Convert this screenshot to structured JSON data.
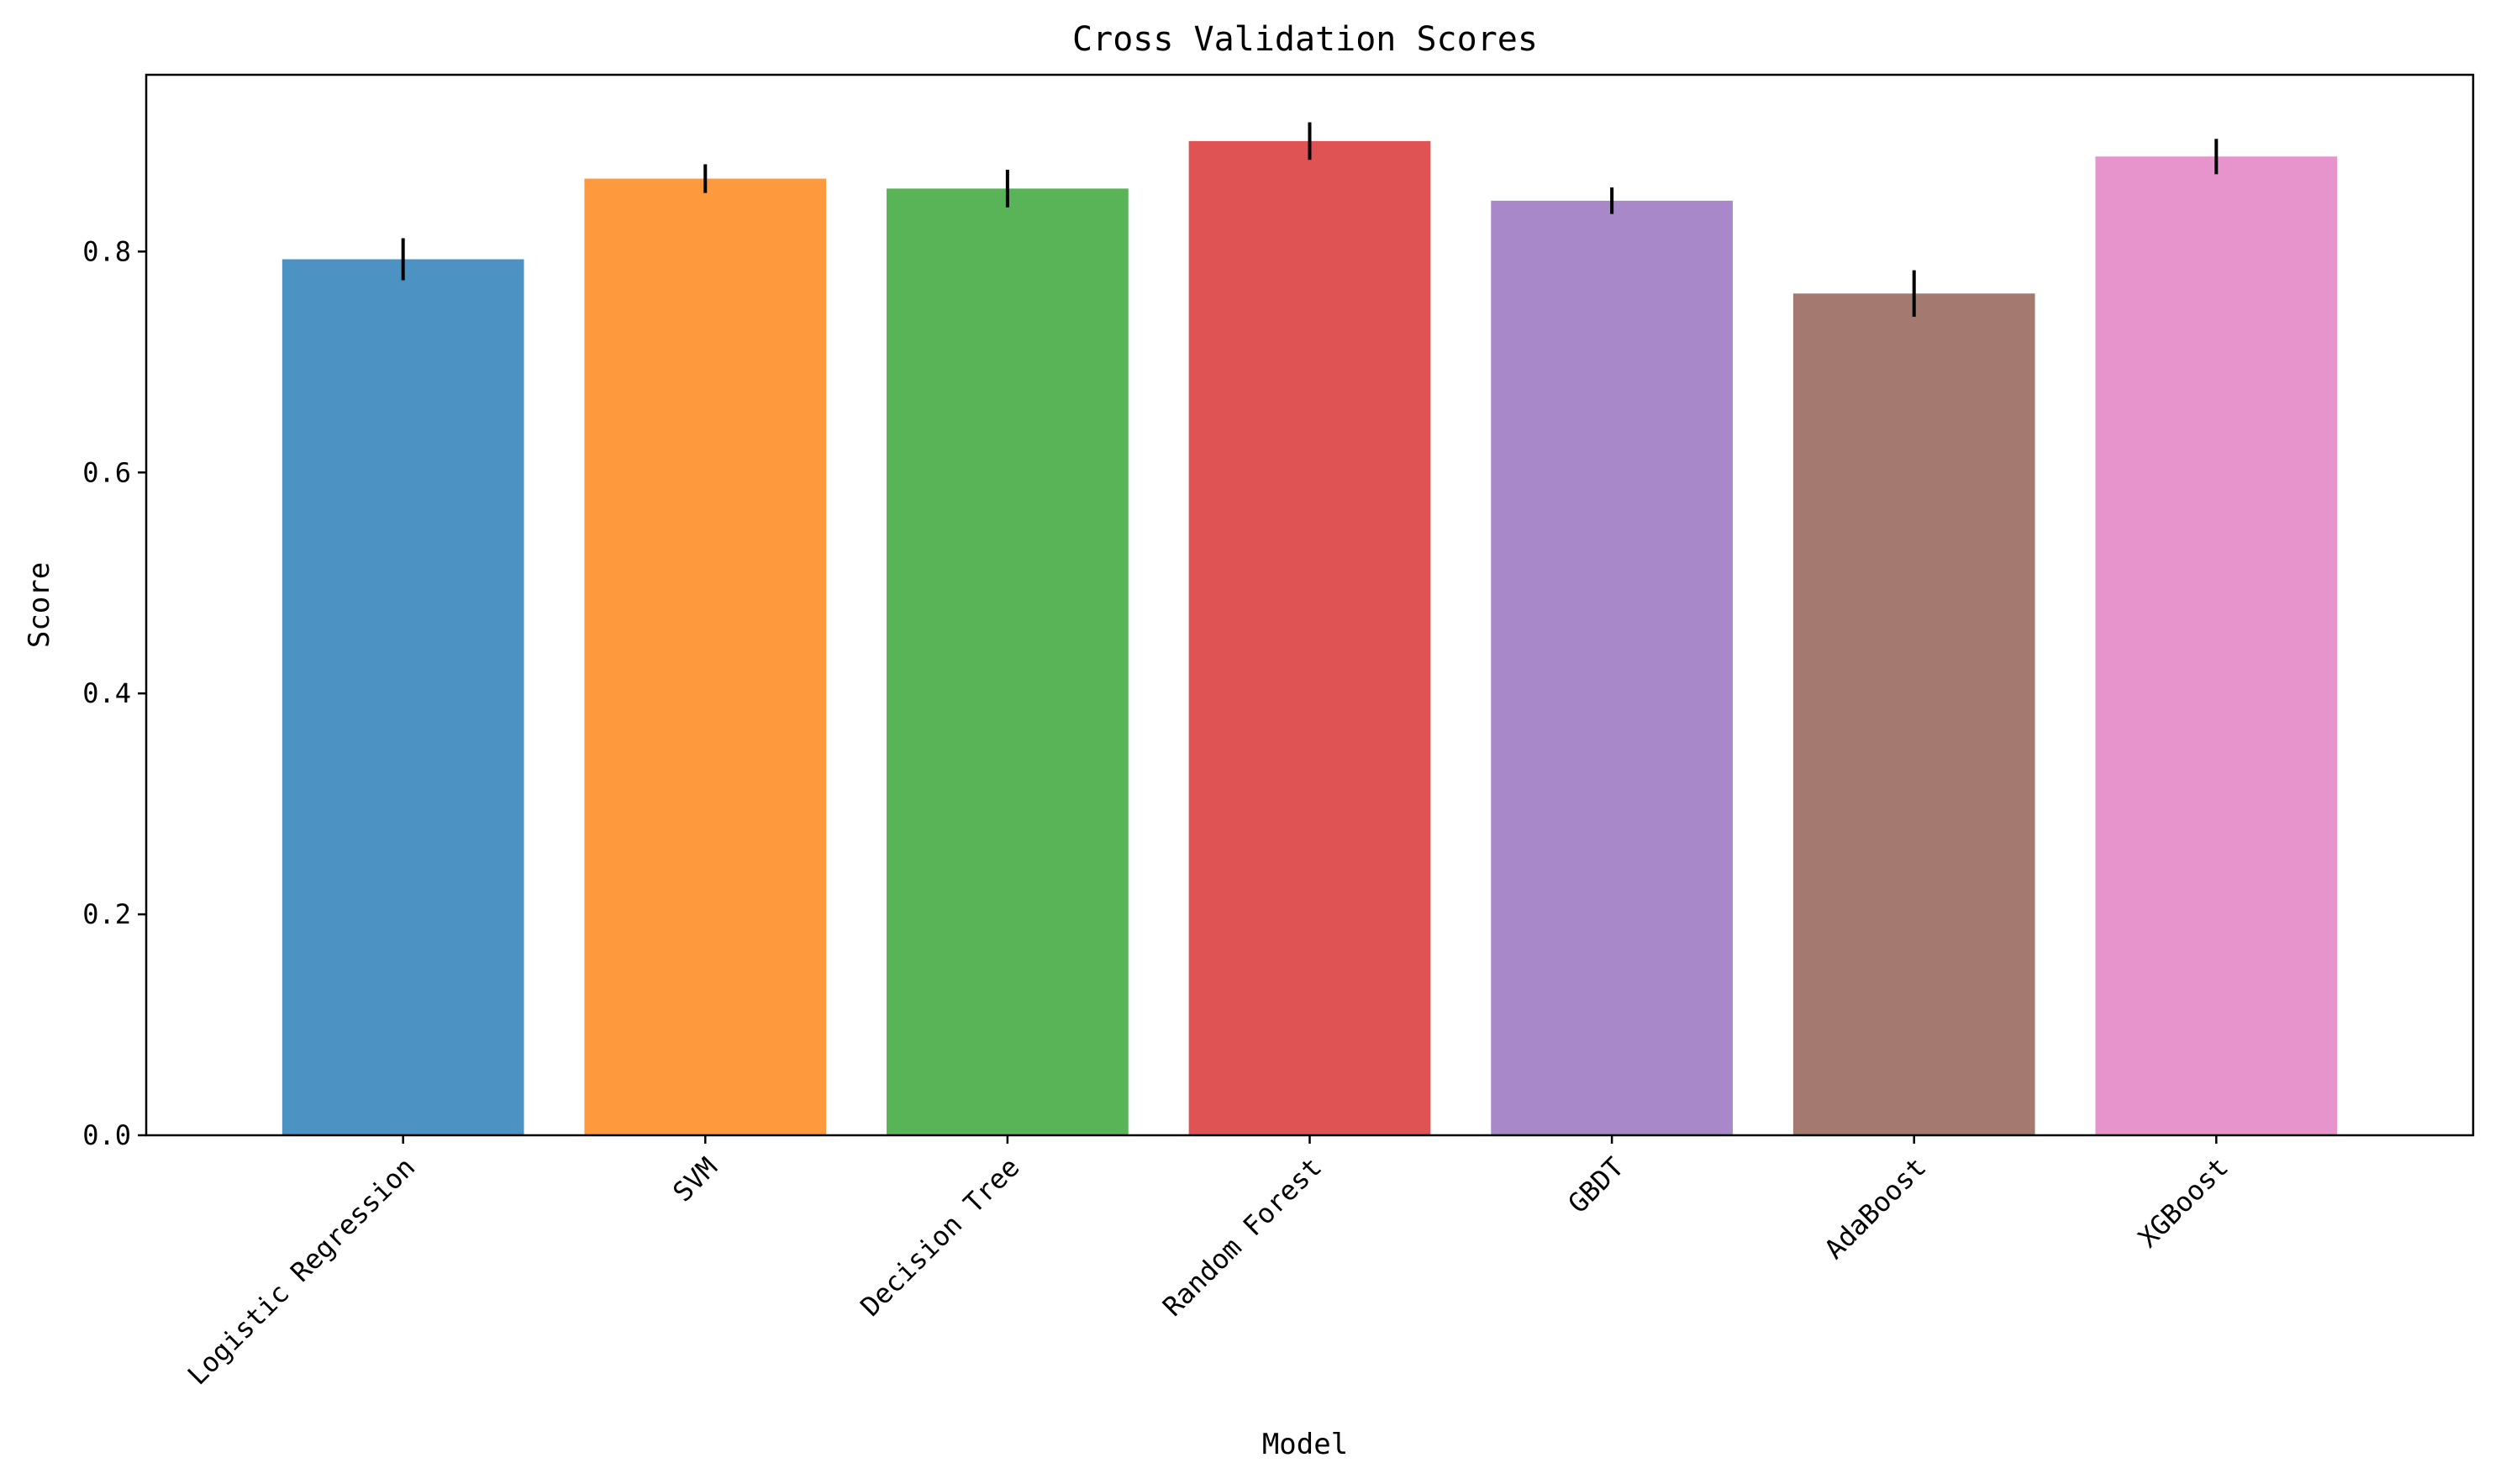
{
  "chart_data": {
    "type": "bar",
    "title": "Cross Validation Scores",
    "xlabel": "Model",
    "ylabel": "Score",
    "ylim": [
      0,
      0.96
    ],
    "yticks": [
      0.0,
      0.2,
      0.4,
      0.6,
      0.8
    ],
    "ytick_labels": [
      "0.0",
      "0.2",
      "0.4",
      "0.6",
      "0.8"
    ],
    "grid": false,
    "categories": [
      "Logistic Regression",
      "SVM",
      "Decision Tree",
      "Random Forest",
      "GBDT",
      "AdaBoost",
      "XGBoost"
    ],
    "values": [
      0.793,
      0.866,
      0.857,
      0.9,
      0.846,
      0.762,
      0.886
    ],
    "errors": [
      0.019,
      0.013,
      0.017,
      0.017,
      0.012,
      0.021,
      0.016
    ],
    "colors": [
      "#4c92c3",
      "#ff993e",
      "#59b357",
      "#df5354",
      "#a988c9",
      "#a47970",
      "#e894cc"
    ],
    "error_color": "#000000"
  }
}
